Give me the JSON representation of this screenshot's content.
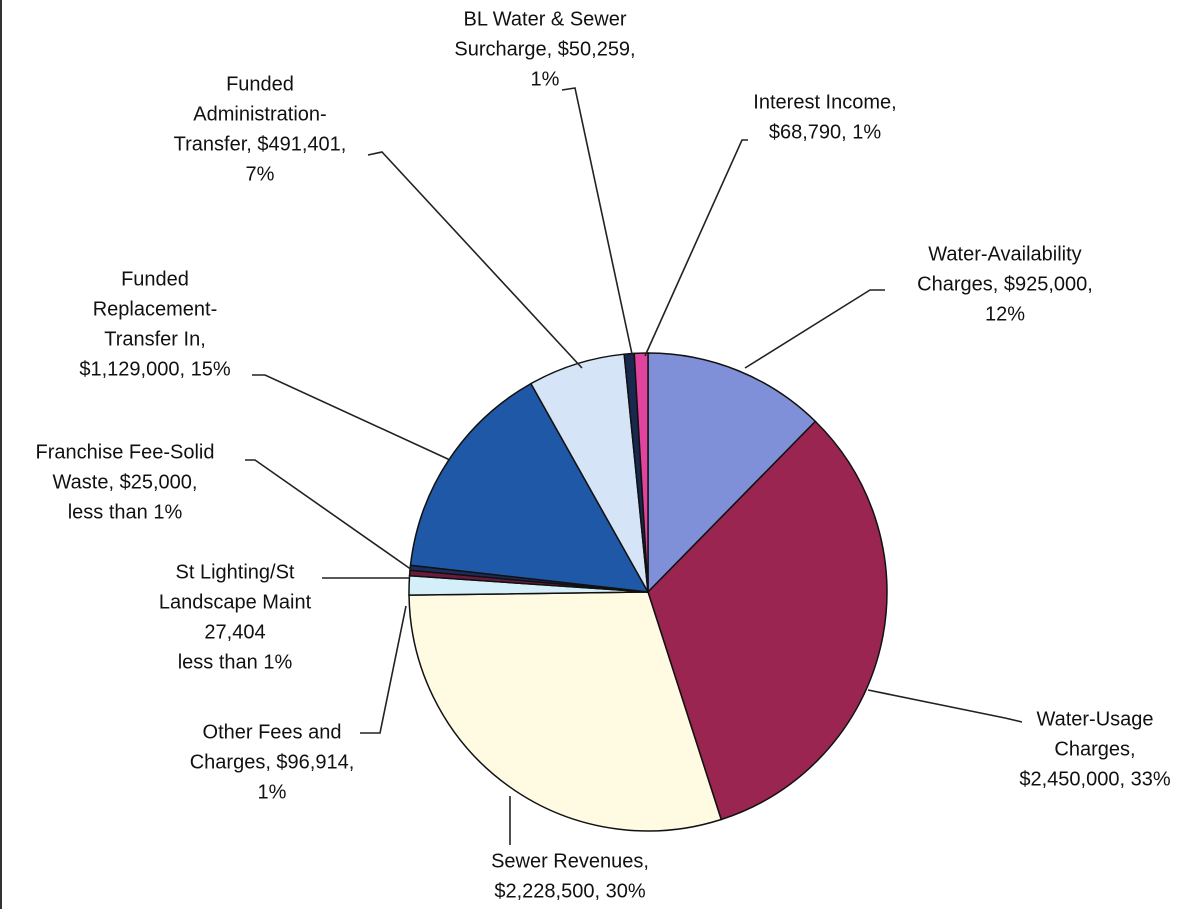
{
  "chart_data": {
    "type": "pie",
    "labels": [
      [
        "Water-Availability",
        "Charges, $925,000,",
        "12%"
      ],
      [
        "Water-Usage",
        "Charges,",
        "$2,450,000, 33%"
      ],
      [
        "Sewer Revenues,",
        "$2,228,500, 30%"
      ],
      [
        "Other Fees and",
        "Charges, $96,914,",
        "1%"
      ],
      [
        "St Lighting/St",
        "Landscape Maint",
        "27,404",
        "less than 1%"
      ],
      [
        "Franchise Fee-Solid",
        "Waste, $25,000,",
        "less than 1%"
      ],
      [
        "Funded",
        "Replacement-",
        "Transfer In,",
        "$1,129,000, 15%"
      ],
      [
        "Funded",
        "Administration-",
        "Transfer, $491,401,",
        "7%"
      ],
      [
        "BL Water & Sewer",
        "Surcharge, $50,259,",
        "1%"
      ],
      [
        "Interest Income,",
        "$68,790, 1%"
      ]
    ],
    "values": [
      925000,
      2450000,
      2228500,
      96914,
      27404,
      25000,
      1129000,
      491401,
      50259,
      68790
    ],
    "colors": [
      "#8090d8",
      "#9a2550",
      "#fffbe2",
      "#d4eefa",
      "#6b1c3c",
      "#1c2c5c",
      "#1f58a6",
      "#d6e4f8",
      "#18284e",
      "#e0449c"
    ]
  }
}
